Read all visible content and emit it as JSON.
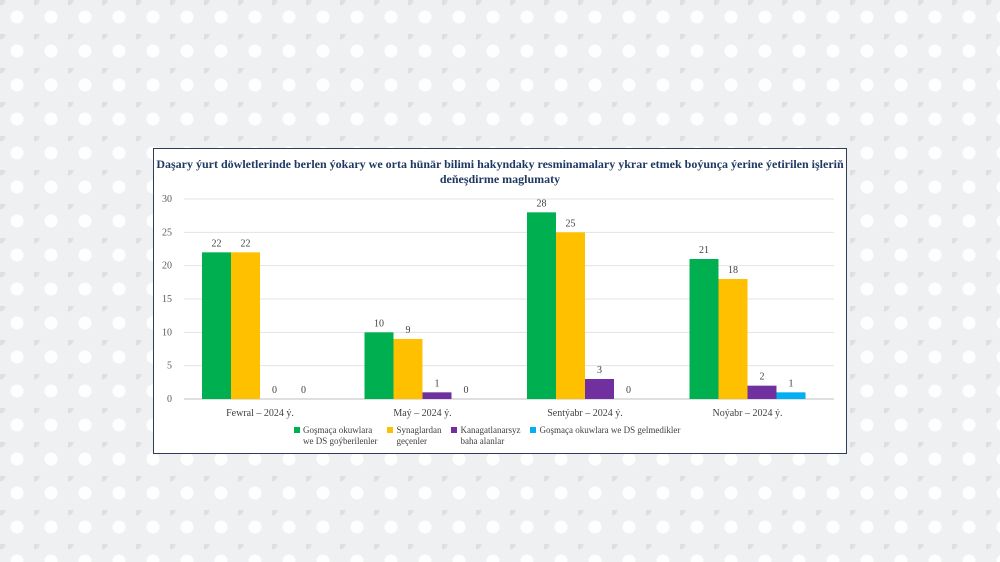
{
  "chart_data": {
    "type": "bar",
    "title": "Daşary ýurt döwletlerinde berlen ýokary we orta hünär bilimi hakyndaky resminamalary ykrar etmek boýunça ýerine ýetirilen işleriň deňeşdirme maglumaty",
    "categories": [
      "Fewral – 2024 ý.",
      "Maý – 2024 ý.",
      "Sentýabr – 2024 ý.",
      "Noýabr – 2024 ý."
    ],
    "series": [
      {
        "name": "Goşmaça okuwlara we DS goýberilenler",
        "color": "#00b050",
        "values": [
          22,
          10,
          28,
          21
        ]
      },
      {
        "name": "Synaglardan geçenler",
        "color": "#ffc000",
        "values": [
          22,
          9,
          25,
          18
        ]
      },
      {
        "name": "Kanagatlanarsyz baha alanlar",
        "color": "#7030a0",
        "values": [
          0,
          1,
          3,
          2
        ]
      },
      {
        "name": "Goşmaça okuwlara we DS gelmedikler",
        "color": "#00b0f0",
        "values": [
          0,
          0,
          0,
          1
        ]
      }
    ],
    "legend_lines": [
      "Goşmaça okuwlara\nwe DS goýberilenler",
      "Synaglardan\ngeçenler",
      "Kanagatlanarsyz\nbaha alanlar",
      "Goşmaça okuwlara we DS gelmedikler"
    ],
    "yticks": [
      "0",
      "5",
      "10",
      "15",
      "20",
      "25",
      "30"
    ],
    "ylim": [
      0,
      30
    ],
    "grid": true,
    "legend_position": "bottom"
  }
}
